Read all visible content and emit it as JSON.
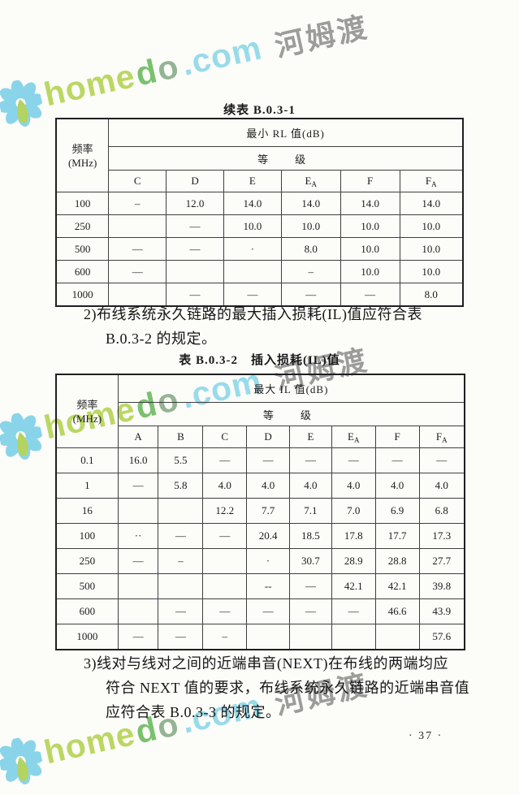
{
  "watermark": {
    "home": "home",
    "d": "d",
    "o": "o",
    "com_text": ".com",
    "cn": "河姆渡",
    "colors": {
      "petal": "#7bcfe9",
      "droplet": "#a9cf4e",
      "home": "#b3d24f",
      "d": "#68b95b",
      "o": "#86ab85",
      "com": "#8bd7e9",
      "cn_gray": "#8f8f8f"
    }
  },
  "page": {
    "title_table1": "续表 B.0.3-1",
    "para2_line1": "2)布线系统永久链路的最大插入损耗(IL)值应符合表",
    "para2_line2": "B.0.3-2 的规定。",
    "table2_caption": "表 B.0.3-2　插入损耗(IL)值",
    "para3_line1": "3)线对与线对之间的近端串音(NEXT)在布线的两端均应",
    "para3_line2": "符合 NEXT 值的要求，布线系统永久链路的近端串音值",
    "para3_line3": "应符合表 B.0.3-3 的规定。",
    "page_number": "· 37 ·"
  },
  "table1": {
    "freq_label_1": "频率",
    "freq_label_2": "(MHz)",
    "span_header": "最小 RL 值(dB)",
    "grade_label": "等　级",
    "columns": [
      {
        "main": "C",
        "sub": ""
      },
      {
        "main": "D",
        "sub": ""
      },
      {
        "main": "E",
        "sub": ""
      },
      {
        "main": "E",
        "sub": "A"
      },
      {
        "main": "F",
        "sub": ""
      },
      {
        "main": "F",
        "sub": "A"
      }
    ],
    "rows": [
      {
        "freq": "100",
        "values": [
          "–",
          "12.0",
          "14.0",
          "14.0",
          "14.0",
          "14.0"
        ]
      },
      {
        "freq": "250",
        "values": [
          "",
          "—",
          "10.0",
          "10.0",
          "10.0",
          "10.0"
        ]
      },
      {
        "freq": "500",
        "values": [
          "—",
          "—",
          "·",
          "8.0",
          "10.0",
          "10.0"
        ]
      },
      {
        "freq": "600",
        "values": [
          "—",
          "",
          "",
          "–",
          "10.0",
          "10.0"
        ]
      },
      {
        "freq": "1000",
        "values": [
          "",
          "—",
          "—",
          "—",
          "—",
          "8.0"
        ]
      }
    ]
  },
  "table2": {
    "freq_label_1": "频率",
    "freq_label_2": "(MHz)",
    "span_header": "最大 IL 值(dB)",
    "grade_label": "等　级",
    "columns": [
      {
        "main": "A",
        "sub": ""
      },
      {
        "main": "B",
        "sub": ""
      },
      {
        "main": "C",
        "sub": ""
      },
      {
        "main": "D",
        "sub": ""
      },
      {
        "main": "E",
        "sub": ""
      },
      {
        "main": "E",
        "sub": "A"
      },
      {
        "main": "F",
        "sub": ""
      },
      {
        "main": "F",
        "sub": "A"
      }
    ],
    "rows": [
      {
        "freq": "0.1",
        "values": [
          "16.0",
          "5.5",
          "—",
          "—",
          "—",
          "—",
          "—",
          "—"
        ]
      },
      {
        "freq": "1",
        "values": [
          "—",
          "5.8",
          "4.0",
          "4.0",
          "4.0",
          "4.0",
          "4.0",
          "4.0"
        ]
      },
      {
        "freq": "16",
        "values": [
          "",
          "",
          "12.2",
          "7.7",
          "7.1",
          "7.0",
          "6.9",
          "6.8"
        ]
      },
      {
        "freq": "100",
        "values": [
          "··",
          "—",
          "—",
          "20.4",
          "18.5",
          "17.8",
          "17.7",
          "17.3"
        ]
      },
      {
        "freq": "250",
        "values": [
          "—",
          "–",
          "",
          "·",
          "30.7",
          "28.9",
          "28.8",
          "27.7"
        ]
      },
      {
        "freq": "500",
        "values": [
          "",
          "",
          "",
          "--",
          "—",
          "42.1",
          "42.1",
          "39.8"
        ]
      },
      {
        "freq": "600",
        "values": [
          "",
          "—",
          "—",
          "—",
          "—",
          "—",
          "46.6",
          "43.9"
        ]
      },
      {
        "freq": "1000",
        "values": [
          "—",
          "—",
          "–",
          "",
          "",
          "",
          "",
          "57.6"
        ]
      }
    ]
  }
}
